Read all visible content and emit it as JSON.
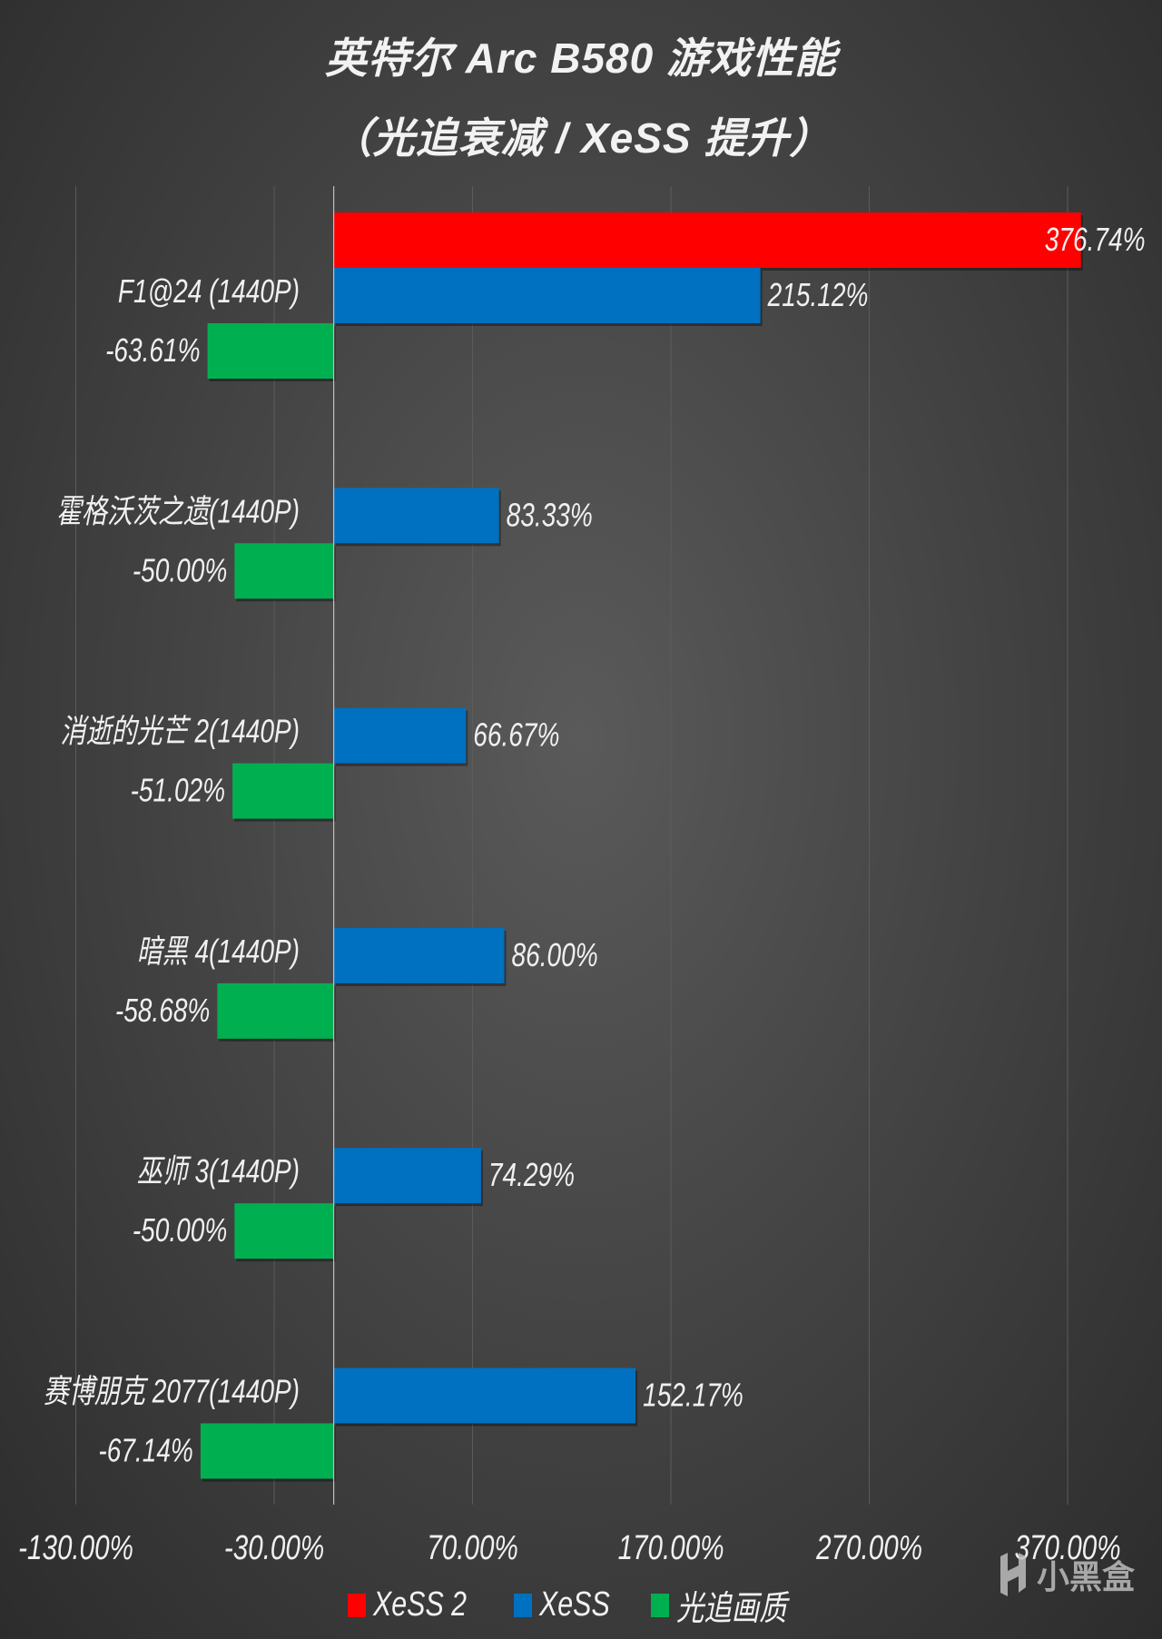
{
  "title_line1": "英特尔 Arc B580 游戏性能",
  "title_line2": "（光追衰减 / XeSS 提升）",
  "watermark": "小黑盒",
  "chart_data": {
    "type": "bar",
    "orientation": "horizontal",
    "title": "英特尔 Arc B580 游戏性能（光追衰减 / XeSS 提升）",
    "categories": [
      "F1@24 (1440P)",
      "霍格沃茨之遗(1440P)",
      "消逝的光芒 2(1440P)",
      "暗黑 4(1440P)",
      "巫师 3(1440P)",
      "赛博朋克 2077(1440P)"
    ],
    "series": [
      {
        "name": "XeSS 2",
        "color": "#ff0000",
        "values": [
          376.74,
          null,
          null,
          null,
          null,
          null
        ],
        "labels": [
          "376.74%",
          null,
          null,
          null,
          null,
          null
        ]
      },
      {
        "name": "XeSS",
        "color": "#0070c0",
        "values": [
          215.12,
          83.33,
          66.67,
          86.0,
          74.29,
          152.17
        ],
        "labels": [
          "215.12%",
          "83.33%",
          "66.67%",
          "86.00%",
          "74.29%",
          "152.17%"
        ]
      },
      {
        "name": "光追画质",
        "color": "#00b050",
        "values": [
          -63.61,
          -50.0,
          -51.02,
          -58.68,
          -50.0,
          -67.14
        ],
        "labels": [
          "-63.61%",
          "-50.00%",
          "-51.02%",
          "-58.68%",
          "-50.00%",
          "-67.14%"
        ]
      }
    ],
    "xticks": [
      -130,
      -30,
      70,
      170,
      270,
      370
    ],
    "xtick_labels": [
      "-130.00%",
      "-30.00%",
      "70.00%",
      "170.00%",
      "270.00%",
      "370.00%"
    ],
    "xlim": [
      -160,
      395
    ],
    "grid": true,
    "legend": "bottom"
  }
}
